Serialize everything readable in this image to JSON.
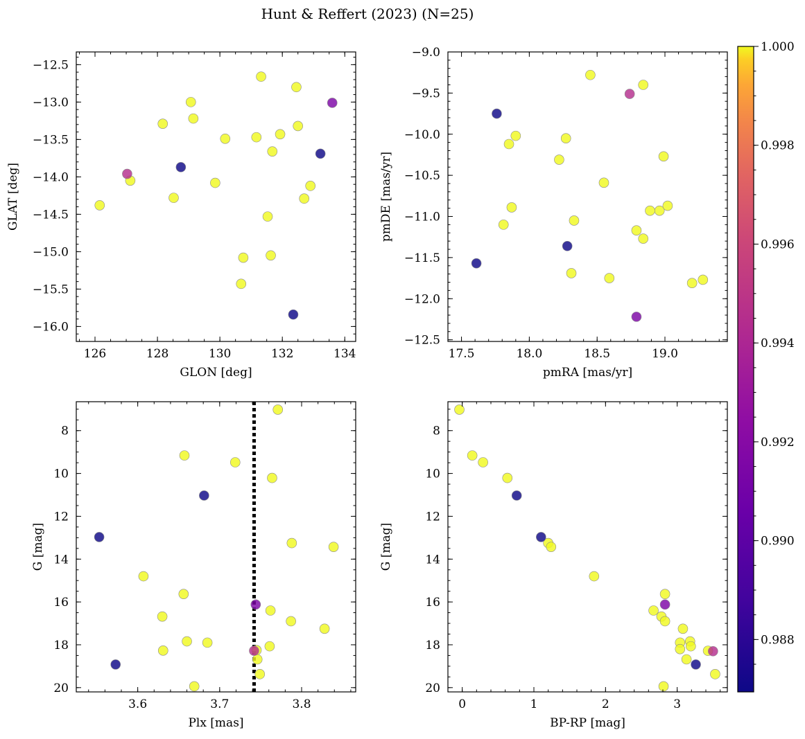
{
  "figure": {
    "title": "Hunt & Reffert (2023) (N=25)",
    "colorbar": {
      "range": [
        0.98694,
        1.0
      ],
      "ticks": [
        0.988,
        0.99,
        0.992,
        0.994,
        0.996,
        0.998,
        1.0
      ],
      "tick_labels": [
        "0.988",
        "0.990",
        "0.992",
        "0.994",
        "0.996",
        "0.998",
        "1.000"
      ],
      "colormap": "plasma"
    }
  },
  "chart_data": [
    {
      "type": "scatter",
      "id": "p1",
      "xlabel": "GLON [deg]",
      "ylabel": "GLAT [deg]",
      "xlim": [
        125.4,
        134.35
      ],
      "ylim": [
        -16.2,
        -12.33
      ],
      "y_inverted": false,
      "xticks": [
        126,
        128,
        130,
        132,
        134
      ],
      "xtick_labels": [
        "126",
        "128",
        "130",
        "132",
        "134"
      ],
      "xminor": 0.5,
      "yticks": [
        -16.0,
        -15.5,
        -15.0,
        -14.5,
        -14.0,
        -13.5,
        -13.0,
        -12.5
      ],
      "ytick_labels": [
        "−16.0",
        "−15.5",
        "−15.0",
        "−14.5",
        "−14.0",
        "−13.5",
        "−13.0",
        "−12.5"
      ],
      "yminor": 0.1,
      "points": [
        {
          "x": 126.15,
          "y": -14.38,
          "c": 1.0
        },
        {
          "x": 127.13,
          "y": -14.05,
          "c": 1.0
        },
        {
          "x": 128.17,
          "y": -13.29,
          "c": 1.0
        },
        {
          "x": 128.52,
          "y": -14.28,
          "c": 1.0
        },
        {
          "x": 129.07,
          "y": -13.0,
          "c": 1.0
        },
        {
          "x": 129.15,
          "y": -13.22,
          "c": 1.0
        },
        {
          "x": 129.85,
          "y": -14.08,
          "c": 1.0
        },
        {
          "x": 130.17,
          "y": -13.49,
          "c": 1.0
        },
        {
          "x": 130.68,
          "y": -15.43,
          "c": 1.0
        },
        {
          "x": 130.75,
          "y": -15.08,
          "c": 1.0
        },
        {
          "x": 131.17,
          "y": -13.47,
          "c": 1.0
        },
        {
          "x": 131.32,
          "y": -12.66,
          "c": 1.0
        },
        {
          "x": 131.53,
          "y": -14.53,
          "c": 1.0
        },
        {
          "x": 131.63,
          "y": -15.05,
          "c": 1.0
        },
        {
          "x": 131.68,
          "y": -13.66,
          "c": 1.0
        },
        {
          "x": 131.93,
          "y": -13.43,
          "c": 1.0
        },
        {
          "x": 132.45,
          "y": -12.8,
          "c": 1.0
        },
        {
          "x": 132.5,
          "y": -13.32,
          "c": 1.0
        },
        {
          "x": 132.7,
          "y": -14.29,
          "c": 1.0
        },
        {
          "x": 132.9,
          "y": -14.12,
          "c": 1.0
        },
        {
          "x": 127.03,
          "y": -13.96,
          "c": 0.9945
        },
        {
          "x": 133.6,
          "y": -13.01,
          "c": 0.9915
        },
        {
          "x": 128.75,
          "y": -13.87,
          "c": 0.987
        },
        {
          "x": 133.22,
          "y": -13.69,
          "c": 0.987
        },
        {
          "x": 132.35,
          "y": -15.84,
          "c": 0.987
        }
      ]
    },
    {
      "type": "scatter",
      "id": "p2",
      "xlabel": "pmRA [mas/yr]",
      "ylabel": "pmDE [mas/yr]",
      "xlim": [
        17.4,
        19.46
      ],
      "ylim": [
        -12.52,
        -9.0
      ],
      "y_inverted": false,
      "xticks": [
        17.5,
        18.0,
        18.5,
        19.0
      ],
      "xtick_labels": [
        "17.5",
        "18.0",
        "18.5",
        "19.0"
      ],
      "xminor": 0.1,
      "yticks": [
        -12.5,
        -12.0,
        -11.5,
        -11.0,
        -10.5,
        -10.0,
        -9.5,
        -9.0
      ],
      "ytick_labels": [
        "−12.5",
        "−12.0",
        "−11.5",
        "−11.0",
        "−10.5",
        "−10.0",
        "−9.5",
        "−9.0"
      ],
      "yminor": 0.1,
      "points": [
        {
          "x": 17.81,
          "y": -11.1,
          "c": 1.0
        },
        {
          "x": 17.85,
          "y": -10.12,
          "c": 1.0
        },
        {
          "x": 17.87,
          "y": -10.89,
          "c": 1.0
        },
        {
          "x": 17.9,
          "y": -10.02,
          "c": 1.0
        },
        {
          "x": 18.22,
          "y": -10.31,
          "c": 1.0
        },
        {
          "x": 18.27,
          "y": -10.05,
          "c": 1.0
        },
        {
          "x": 18.31,
          "y": -11.69,
          "c": 1.0
        },
        {
          "x": 18.33,
          "y": -11.05,
          "c": 1.0
        },
        {
          "x": 18.45,
          "y": -9.28,
          "c": 1.0
        },
        {
          "x": 18.55,
          "y": -10.59,
          "c": 1.0
        },
        {
          "x": 18.59,
          "y": -11.75,
          "c": 1.0
        },
        {
          "x": 18.79,
          "y": -11.17,
          "c": 1.0
        },
        {
          "x": 18.84,
          "y": -9.4,
          "c": 1.0
        },
        {
          "x": 18.84,
          "y": -11.27,
          "c": 1.0
        },
        {
          "x": 18.89,
          "y": -10.93,
          "c": 1.0
        },
        {
          "x": 18.96,
          "y": -10.93,
          "c": 1.0
        },
        {
          "x": 18.99,
          "y": -10.27,
          "c": 1.0
        },
        {
          "x": 19.02,
          "y": -10.87,
          "c": 1.0
        },
        {
          "x": 19.2,
          "y": -11.81,
          "c": 1.0
        },
        {
          "x": 19.28,
          "y": -11.77,
          "c": 1.0
        },
        {
          "x": 18.74,
          "y": -9.51,
          "c": 0.9945
        },
        {
          "x": 18.79,
          "y": -12.22,
          "c": 0.9915
        },
        {
          "x": 17.76,
          "y": -9.75,
          "c": 0.987
        },
        {
          "x": 18.28,
          "y": -11.36,
          "c": 0.987
        },
        {
          "x": 17.61,
          "y": -11.57,
          "c": 0.987
        }
      ]
    },
    {
      "type": "scatter",
      "id": "p3",
      "xlabel": "Plx [mas]",
      "ylabel": "G [mag]",
      "xlim": [
        3.525,
        3.866
      ],
      "ylim": [
        6.65,
        20.2
      ],
      "y_inverted": true,
      "xticks": [
        3.6,
        3.7,
        3.8
      ],
      "xtick_labels": [
        "3.6",
        "3.7",
        "3.8"
      ],
      "xminor": 0.02,
      "yticks": [
        8,
        10,
        12,
        14,
        16,
        18,
        20
      ],
      "ytick_labels": [
        "8",
        "10",
        "12",
        "14",
        "16",
        "18",
        "20"
      ],
      "yminor": 0.5,
      "vline": 3.742,
      "points": [
        {
          "x": 3.771,
          "y": 7.02,
          "c": 1.0
        },
        {
          "x": 3.657,
          "y": 9.16,
          "c": 1.0
        },
        {
          "x": 3.719,
          "y": 9.48,
          "c": 1.0
        },
        {
          "x": 3.764,
          "y": 10.21,
          "c": 1.0
        },
        {
          "x": 3.788,
          "y": 13.25,
          "c": 1.0
        },
        {
          "x": 3.839,
          "y": 13.43,
          "c": 1.0
        },
        {
          "x": 3.607,
          "y": 14.8,
          "c": 1.0
        },
        {
          "x": 3.656,
          "y": 15.63,
          "c": 1.0
        },
        {
          "x": 3.762,
          "y": 16.4,
          "c": 1.0
        },
        {
          "x": 3.63,
          "y": 16.68,
          "c": 1.0
        },
        {
          "x": 3.787,
          "y": 16.9,
          "c": 1.0
        },
        {
          "x": 3.828,
          "y": 17.25,
          "c": 1.0
        },
        {
          "x": 3.66,
          "y": 17.84,
          "c": 1.0
        },
        {
          "x": 3.685,
          "y": 17.9,
          "c": 1.0
        },
        {
          "x": 3.761,
          "y": 18.07,
          "c": 1.0
        },
        {
          "x": 3.631,
          "y": 18.27,
          "c": 1.0
        },
        {
          "x": 3.745,
          "y": 18.25,
          "c": 1.0
        },
        {
          "x": 3.746,
          "y": 18.68,
          "c": 1.0
        },
        {
          "x": 3.749,
          "y": 19.37,
          "c": 1.0
        },
        {
          "x": 3.669,
          "y": 19.94,
          "c": 1.0
        },
        {
          "x": 3.742,
          "y": 18.28,
          "c": 0.9945
        },
        {
          "x": 3.744,
          "y": 16.12,
          "c": 0.9915
        },
        {
          "x": 3.681,
          "y": 11.03,
          "c": 0.987
        },
        {
          "x": 3.553,
          "y": 12.97,
          "c": 0.987
        },
        {
          "x": 3.573,
          "y": 18.92,
          "c": 0.987
        }
      ]
    },
    {
      "type": "scatter",
      "id": "p4",
      "xlabel": "BP-RP [mag]",
      "ylabel": "G [mag]",
      "xlim": [
        -0.2,
        3.7
      ],
      "ylim": [
        6.65,
        20.2
      ],
      "y_inverted": true,
      "xticks": [
        0,
        1,
        2,
        3
      ],
      "xtick_labels": [
        "0",
        "1",
        "2",
        "3"
      ],
      "xminor": 0.2,
      "yticks": [
        8,
        10,
        12,
        14,
        16,
        18,
        20
      ],
      "ytick_labels": [
        "8",
        "10",
        "12",
        "14",
        "16",
        "18",
        "20"
      ],
      "yminor": 0.5,
      "points": [
        {
          "x": -0.04,
          "y": 7.02,
          "c": 1.0
        },
        {
          "x": 0.14,
          "y": 9.16,
          "c": 1.0
        },
        {
          "x": 0.29,
          "y": 9.48,
          "c": 1.0
        },
        {
          "x": 0.63,
          "y": 10.21,
          "c": 1.0
        },
        {
          "x": 1.2,
          "y": 13.25,
          "c": 1.0
        },
        {
          "x": 1.24,
          "y": 13.43,
          "c": 1.0
        },
        {
          "x": 1.84,
          "y": 14.8,
          "c": 1.0
        },
        {
          "x": 2.83,
          "y": 15.63,
          "c": 1.0
        },
        {
          "x": 2.67,
          "y": 16.4,
          "c": 1.0
        },
        {
          "x": 2.78,
          "y": 16.68,
          "c": 1.0
        },
        {
          "x": 2.83,
          "y": 16.9,
          "c": 1.0
        },
        {
          "x": 3.08,
          "y": 17.25,
          "c": 1.0
        },
        {
          "x": 3.18,
          "y": 17.84,
          "c": 1.0
        },
        {
          "x": 3.04,
          "y": 17.9,
          "c": 1.0
        },
        {
          "x": 3.19,
          "y": 18.07,
          "c": 1.0
        },
        {
          "x": 3.04,
          "y": 18.2,
          "c": 1.0
        },
        {
          "x": 3.43,
          "y": 18.28,
          "c": 1.0
        },
        {
          "x": 3.13,
          "y": 18.68,
          "c": 1.0
        },
        {
          "x": 3.53,
          "y": 19.37,
          "c": 1.0
        },
        {
          "x": 2.81,
          "y": 19.94,
          "c": 1.0
        },
        {
          "x": 3.5,
          "y": 18.3,
          "c": 0.9945
        },
        {
          "x": 2.83,
          "y": 16.12,
          "c": 0.9915
        },
        {
          "x": 0.76,
          "y": 11.03,
          "c": 0.987
        },
        {
          "x": 1.1,
          "y": 12.97,
          "c": 0.987
        },
        {
          "x": 3.26,
          "y": 18.92,
          "c": 0.987
        }
      ]
    }
  ]
}
